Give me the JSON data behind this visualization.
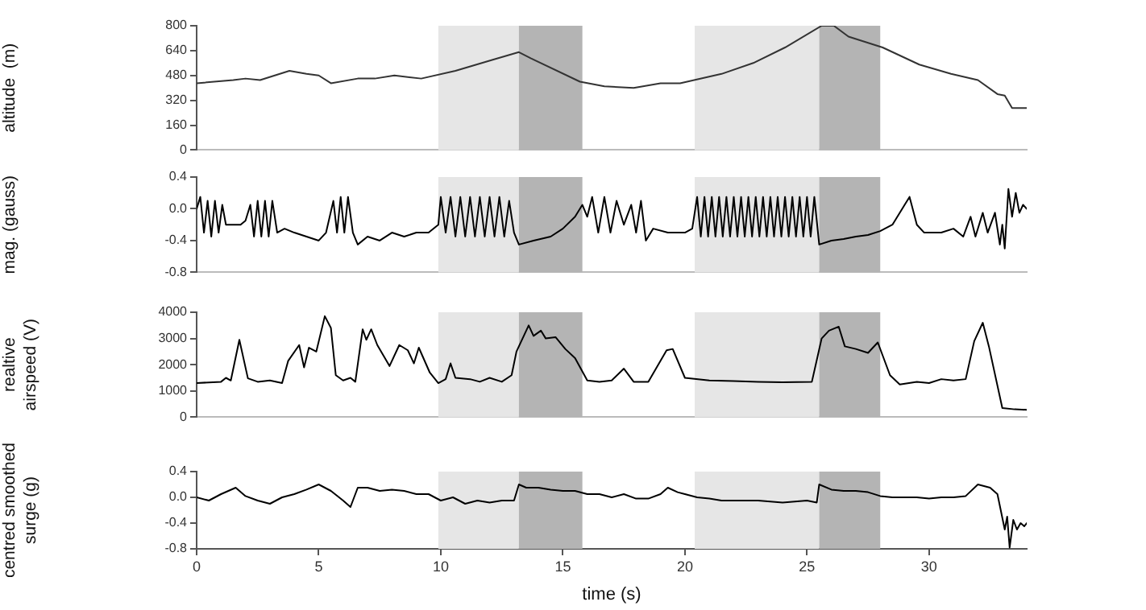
{
  "chart_data": [
    {
      "type": "line",
      "ylabel": "altitude  (m)",
      "xlim": [
        0,
        34
      ],
      "ylim": [
        0,
        800
      ],
      "yticks": [
        0,
        160,
        320,
        480,
        640,
        800
      ],
      "tick_labels": "y",
      "grid": false,
      "legend": false,
      "marker": "none",
      "line_style": "solid",
      "bands": [
        {
          "axis": "x",
          "from": 9.9,
          "to": 13.2,
          "color": "#e6e6e6"
        },
        {
          "axis": "x",
          "from": 13.2,
          "to": 15.8,
          "color": "#b4b4b4"
        },
        {
          "axis": "x",
          "from": 20.4,
          "to": 25.5,
          "color": "#e6e6e6"
        },
        {
          "axis": "x",
          "from": 25.5,
          "to": 28,
          "color": "#b4b4b4"
        }
      ],
      "series": [
        {
          "color": "#333333",
          "x": [
            0,
            1.5,
            2,
            2.6,
            3.8,
            4.5,
            5,
            5.5,
            6.6,
            7.3,
            8.1,
            9.2,
            10.6,
            12.1,
            13.2,
            13.7,
            15.7,
            16.7,
            17.9,
            19,
            19.8,
            21.5,
            22.8,
            24.1,
            25.6,
            26.1,
            26.7,
            28.1,
            29.6,
            30.9,
            32,
            32.8,
            33.1,
            33.4,
            34
          ],
          "values": [
            430,
            450,
            460,
            450,
            510,
            490,
            480,
            430,
            460,
            460,
            480,
            460,
            510,
            580,
            630,
            590,
            440,
            410,
            400,
            430,
            430,
            490,
            560,
            660,
            800,
            800,
            730,
            660,
            550,
            490,
            450,
            360,
            350,
            270,
            270
          ]
        }
      ]
    },
    {
      "type": "line",
      "ylabel": "mag. (gauss)",
      "xlim": [
        0,
        34
      ],
      "ylim": [
        -0.8,
        0.4
      ],
      "yticks": [
        -0.8,
        -0.4,
        {
          "value": 0,
          "label": "0.0"
        },
        0.4
      ],
      "tick_labels": "y",
      "grid": false,
      "legend": false,
      "marker": "none",
      "line_style": "solid",
      "bands": [
        {
          "axis": "x",
          "from": 9.9,
          "to": 13.2,
          "color": "#e6e6e6"
        },
        {
          "axis": "x",
          "from": 13.2,
          "to": 15.8,
          "color": "#b4b4b4"
        },
        {
          "axis": "x",
          "from": 20.4,
          "to": 25.5,
          "color": "#e6e6e6"
        },
        {
          "axis": "x",
          "from": 25.5,
          "to": 28,
          "color": "#b4b4b4"
        }
      ],
      "series": [
        {
          "color": "#000000",
          "x": [
            0,
            0.15,
            0.3,
            0.45,
            0.6,
            0.75,
            0.9,
            1.05,
            1.2,
            1.5,
            1.8,
            2,
            2.2,
            2.35,
            2.5,
            2.65,
            2.8,
            2.95,
            3.1,
            3.3,
            3.6,
            4,
            4.5,
            5,
            5.3,
            5.6,
            5.75,
            5.9,
            6.05,
            6.2,
            6.4,
            6.6,
            7,
            7.5,
            8,
            8.5,
            9,
            9.5,
            9.9,
            10,
            10.2,
            10.4,
            10.6,
            10.8,
            11,
            11.2,
            11.4,
            11.6,
            11.8,
            12,
            12.2,
            12.4,
            12.6,
            12.8,
            13,
            13.2,
            13.8,
            14.5,
            15,
            15.5,
            15.8,
            16,
            16.2,
            16.45,
            16.7,
            16.95,
            17.2,
            17.5,
            17.8,
            18,
            18.2,
            18.4,
            18.7,
            19.3,
            20,
            20.3,
            20.5,
            20.65,
            20.8,
            20.95,
            21.1,
            21.25,
            21.4,
            21.55,
            21.7,
            21.85,
            22,
            22.15,
            22.3,
            22.45,
            22.6,
            22.75,
            22.9,
            23.05,
            23.2,
            23.35,
            23.5,
            23.65,
            23.8,
            23.95,
            24.1,
            24.25,
            24.4,
            24.55,
            24.7,
            24.85,
            25,
            25.15,
            25.3,
            25.5,
            26,
            26.5,
            27,
            27.5,
            28,
            28.5,
            29,
            29.2,
            29.5,
            29.8,
            30.5,
            31,
            31.4,
            31.7,
            31.9,
            32.2,
            32.4,
            32.7,
            32.9,
            33,
            33.1,
            33.25,
            33.4,
            33.55,
            33.7,
            33.85,
            34
          ],
          "values": [
            0,
            0.15,
            -0.3,
            0.1,
            -0.35,
            0.1,
            -0.3,
            0.05,
            -0.2,
            -0.2,
            -0.2,
            -0.15,
            0.05,
            -0.35,
            0.1,
            -0.35,
            0.1,
            -0.35,
            0.1,
            -0.3,
            -0.25,
            -0.3,
            -0.35,
            -0.4,
            -0.3,
            0.1,
            -0.3,
            0.15,
            -0.3,
            0.15,
            -0.3,
            -0.45,
            -0.35,
            -0.4,
            -0.3,
            -0.35,
            -0.3,
            -0.3,
            -0.2,
            0.15,
            -0.3,
            0.15,
            -0.35,
            0.15,
            -0.35,
            0.15,
            -0.35,
            0.15,
            -0.35,
            0.15,
            -0.35,
            0.15,
            -0.35,
            0.1,
            -0.3,
            -0.45,
            -0.4,
            -0.35,
            -0.25,
            -0.1,
            0.05,
            -0.1,
            0.15,
            -0.3,
            0.15,
            -0.3,
            0.1,
            -0.2,
            0.05,
            -0.3,
            0.1,
            -0.4,
            -0.25,
            -0.3,
            -0.3,
            -0.25,
            0.15,
            -0.35,
            0.15,
            -0.35,
            0.15,
            -0.35,
            0.15,
            -0.35,
            0.15,
            -0.35,
            0.15,
            -0.35,
            0.15,
            -0.35,
            0.15,
            -0.35,
            0.15,
            -0.35,
            0.15,
            -0.35,
            0.15,
            -0.35,
            0.15,
            -0.35,
            0.15,
            -0.35,
            0.15,
            -0.35,
            0.15,
            -0.35,
            0.15,
            -0.35,
            0.15,
            -0.45,
            -0.4,
            -0.38,
            -0.35,
            -0.33,
            -0.28,
            -0.2,
            0.05,
            0.15,
            -0.2,
            -0.3,
            -0.3,
            -0.25,
            -0.35,
            -0.1,
            -0.35,
            -0.05,
            -0.3,
            -0.05,
            -0.45,
            -0.2,
            -0.5,
            0.25,
            -0.1,
            0.2,
            -0.05,
            0.05,
            0
          ]
        }
      ]
    },
    {
      "type": "line",
      "ylabel": "realtive\nairspeed (V)",
      "xlim": [
        0,
        34
      ],
      "ylim": [
        0,
        4000
      ],
      "yticks": [
        0,
        1000,
        2000,
        3000,
        4000
      ],
      "tick_labels": "y",
      "grid": false,
      "legend": false,
      "marker": "none",
      "line_style": "solid",
      "bands": [
        {
          "axis": "x",
          "from": 9.9,
          "to": 13.2,
          "color": "#e6e6e6"
        },
        {
          "axis": "x",
          "from": 13.2,
          "to": 15.8,
          "color": "#b4b4b4"
        },
        {
          "axis": "x",
          "from": 20.4,
          "to": 25.5,
          "color": "#e6e6e6"
        },
        {
          "axis": "x",
          "from": 25.5,
          "to": 28,
          "color": "#b4b4b4"
        }
      ],
      "series": [
        {
          "color": "#000000",
          "x": [
            0,
            1,
            1.2,
            1.4,
            1.75,
            2.1,
            2.5,
            3,
            3.5,
            3.75,
            4.2,
            4.4,
            4.6,
            4.9,
            5.25,
            5.5,
            5.7,
            6,
            6.3,
            6.5,
            6.8,
            6.95,
            7.15,
            7.4,
            7.9,
            8.3,
            8.65,
            8.9,
            9.1,
            9.55,
            9.9,
            10.2,
            10.4,
            10.6,
            11.2,
            11.6,
            12,
            12.5,
            12.9,
            13.1,
            13.6,
            13.8,
            14.1,
            14.3,
            14.7,
            15.1,
            15.5,
            16,
            16.5,
            17,
            17.5,
            17.9,
            18.5,
            19.25,
            19.5,
            20,
            21,
            22,
            23,
            24,
            25.2,
            25.6,
            25.9,
            26.3,
            26.55,
            27,
            27.5,
            27.9,
            28.4,
            28.8,
            29.5,
            30,
            30.5,
            31,
            31.5,
            31.85,
            32.2,
            32.45,
            33,
            33.5,
            34
          ],
          "values": [
            1300,
            1350,
            1500,
            1400,
            2950,
            1480,
            1350,
            1400,
            1300,
            2150,
            2750,
            1900,
            2650,
            2500,
            3850,
            3400,
            1600,
            1400,
            1500,
            1350,
            3350,
            2950,
            3350,
            2750,
            1950,
            2750,
            2550,
            2050,
            2650,
            1700,
            1300,
            1450,
            2050,
            1500,
            1450,
            1350,
            1500,
            1350,
            1600,
            2500,
            3500,
            3100,
            3300,
            3000,
            3050,
            2600,
            2250,
            1400,
            1350,
            1400,
            1850,
            1350,
            1350,
            2550,
            2600,
            1500,
            1400,
            1380,
            1350,
            1330,
            1350,
            3000,
            3300,
            3450,
            2700,
            2600,
            2450,
            2850,
            1600,
            1250,
            1350,
            1300,
            1450,
            1400,
            1450,
            2900,
            3600,
            2700,
            350,
            300,
            280
          ]
        }
      ]
    },
    {
      "type": "line",
      "ylabel": "centred smoothed\nsurge (g)",
      "xlabel": "time (s)",
      "xlim": [
        0,
        34
      ],
      "xticks": [
        0,
        5,
        10,
        15,
        20,
        25,
        30
      ],
      "ylim": [
        -0.8,
        0.4
      ],
      "yticks": [
        -0.8,
        -0.4,
        {
          "value": 0,
          "label": "0.0"
        },
        0.4
      ],
      "grid": false,
      "legend": false,
      "marker": "none",
      "line_style": "solid",
      "bands": [
        {
          "axis": "x",
          "from": 9.9,
          "to": 13.2,
          "color": "#e6e6e6"
        },
        {
          "axis": "x",
          "from": 13.2,
          "to": 15.8,
          "color": "#b4b4b4"
        },
        {
          "axis": "x",
          "from": 20.4,
          "to": 25.5,
          "color": "#e6e6e6"
        },
        {
          "axis": "x",
          "from": 25.5,
          "to": 28,
          "color": "#b4b4b4"
        }
      ],
      "series": [
        {
          "color": "#000000",
          "x": [
            0,
            0.5,
            1,
            1.6,
            2,
            2.5,
            3,
            3.5,
            4,
            4.5,
            5,
            5.5,
            6,
            6.3,
            6.6,
            7,
            7.5,
            8,
            8.5,
            9,
            9.5,
            10,
            10.5,
            11,
            11.5,
            12,
            12.5,
            13,
            13.2,
            13.5,
            14,
            14.5,
            15,
            15.5,
            16,
            16.5,
            17,
            17.5,
            18,
            18.5,
            19,
            19.3,
            19.7,
            20,
            20.5,
            21,
            21.5,
            22,
            23,
            24,
            25,
            25.4,
            25.5,
            26,
            26.5,
            27,
            27.5,
            28,
            28.5,
            29,
            29.5,
            30,
            30.5,
            31,
            31.5,
            32,
            32.5,
            32.8,
            33.1,
            33.2,
            33.3,
            33.45,
            33.6,
            33.75,
            33.9,
            34
          ],
          "values": [
            0,
            -0.05,
            0.05,
            0.15,
            0.02,
            -0.05,
            -0.1,
            0,
            0.05,
            0.12,
            0.2,
            0.1,
            -0.05,
            -0.15,
            0.15,
            0.15,
            0.1,
            0.12,
            0.1,
            0.05,
            0.05,
            -0.05,
            0,
            -0.1,
            -0.05,
            -0.08,
            -0.05,
            -0.05,
            0.2,
            0.15,
            0.15,
            0.12,
            0.1,
            0.1,
            0.05,
            0.05,
            0,
            0.05,
            -0.02,
            -0.02,
            0.05,
            0.15,
            0.08,
            0.05,
            0,
            -0.02,
            -0.05,
            -0.05,
            -0.05,
            -0.08,
            -0.05,
            -0.08,
            0.2,
            0.12,
            0.1,
            0.1,
            0.08,
            0.02,
            0,
            0,
            0,
            -0.02,
            0,
            0,
            0.02,
            0.2,
            0.15,
            0.05,
            -0.5,
            -0.3,
            -0.78,
            -0.35,
            -0.5,
            -0.4,
            -0.45,
            -0.4
          ]
        }
      ]
    }
  ]
}
